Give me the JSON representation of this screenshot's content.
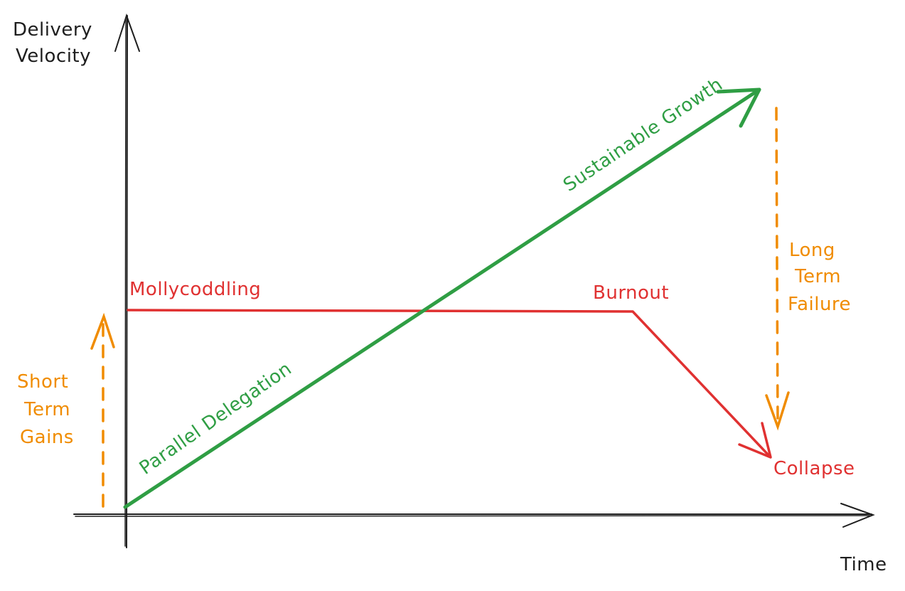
{
  "axes": {
    "y_label_line1": "Delivery",
    "y_label_line2": "Velocity",
    "x_label": "Time"
  },
  "short_term": {
    "line1": "Short",
    "line2": "Term",
    "line3": "Gains"
  },
  "long_term": {
    "line1": "Long",
    "line2": "Term",
    "line3": "Failure"
  },
  "lines": {
    "mollycoddling": "Mollycoddling",
    "burnout": "Burnout",
    "collapse": "Collapse",
    "parallel_delegation": "Parallel Delegation",
    "sustainable_growth": "Sustainable Growth"
  },
  "colors": {
    "axis": "#1e1e1e",
    "green": "#2f9e44",
    "red": "#e03131",
    "orange": "#f08c00"
  }
}
